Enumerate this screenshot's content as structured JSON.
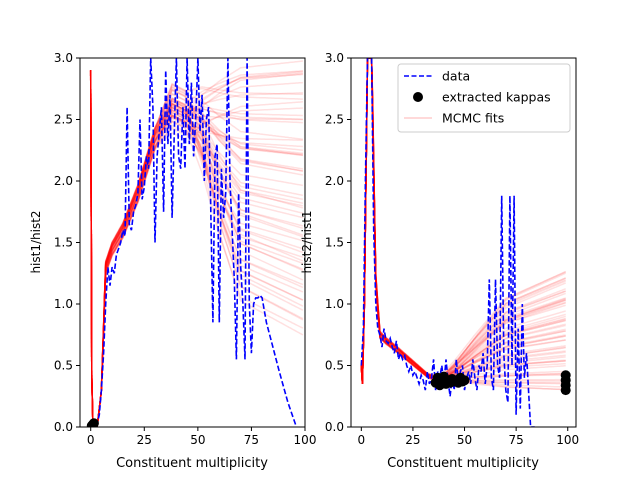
{
  "chart_data": [
    {
      "type": "line",
      "title": "",
      "xlabel": "Constituent multiplicity",
      "ylabel": "hist1/hist2",
      "xlim": [
        -5,
        100
      ],
      "ylim": [
        0,
        3.0
      ],
      "xticks": [
        0,
        25,
        50,
        75,
        100
      ],
      "yticks": [
        0.0,
        0.5,
        1.0,
        1.5,
        2.0,
        2.5,
        3.0
      ],
      "grid": false,
      "legend": "none",
      "series": [
        {
          "name": "data",
          "style": "dashed",
          "color": "#0000ff",
          "points": [
            [
              0,
              0
            ],
            [
              1,
              0.02
            ],
            [
              2,
              0
            ],
            [
              3,
              0.02
            ],
            [
              4,
              0.1
            ],
            [
              5,
              0.3
            ],
            [
              6,
              0.6
            ],
            [
              7,
              1.0
            ],
            [
              8,
              1.3
            ],
            [
              9,
              1.15
            ],
            [
              10,
              1.3
            ],
            [
              11,
              1.25
            ],
            [
              12,
              1.4
            ],
            [
              13,
              1.45
            ],
            [
              14,
              1.5
            ],
            [
              15,
              1.6
            ],
            [
              16,
              1.55
            ],
            [
              17,
              2.6
            ],
            [
              18,
              1.65
            ],
            [
              19,
              1.6
            ],
            [
              20,
              1.75
            ],
            [
              21,
              1.8
            ],
            [
              22,
              1.9
            ],
            [
              23,
              2.5
            ],
            [
              24,
              1.85
            ],
            [
              25,
              1.95
            ],
            [
              26,
              2.2
            ],
            [
              27,
              2.1
            ],
            [
              28,
              3.0
            ],
            [
              29,
              2.6
            ],
            [
              30,
              1.5
            ],
            [
              31,
              2.2
            ],
            [
              32,
              2.4
            ],
            [
              33,
              2.6
            ],
            [
              34,
              1.75
            ],
            [
              35,
              2.9
            ],
            [
              36,
              2.3
            ],
            [
              37,
              2.7
            ],
            [
              38,
              1.7
            ],
            [
              39,
              2.4
            ],
            [
              40,
              3.0
            ],
            [
              41,
              2.2
            ],
            [
              42,
              2.1
            ],
            [
              43,
              2.6
            ],
            [
              44,
              2.1
            ],
            [
              45,
              3.0
            ],
            [
              46,
              2.3
            ],
            [
              47,
              2.8
            ],
            [
              48,
              2.2
            ],
            [
              49,
              2.5
            ],
            [
              50,
              3.0
            ],
            [
              51,
              2.4
            ],
            [
              52,
              2.7
            ],
            [
              53,
              2.0
            ],
            [
              54,
              2.5
            ],
            [
              55,
              2.6
            ],
            [
              56,
              1.8
            ],
            [
              57,
              0.85
            ],
            [
              58,
              2.2
            ],
            [
              59,
              2.3
            ],
            [
              60,
              0.85
            ],
            [
              61,
              2.1
            ],
            [
              62,
              1.7
            ],
            [
              63,
              1.9
            ],
            [
              64,
              3.0
            ],
            [
              65,
              2.0
            ],
            [
              66,
              1.6
            ],
            [
              67,
              1.2
            ],
            [
              68,
              0.55
            ],
            [
              69,
              1.9
            ],
            [
              70,
              1.3
            ],
            [
              71,
              1.0
            ],
            [
              72,
              0.55
            ],
            [
              73,
              3.0
            ],
            [
              74,
              1.0
            ],
            [
              75,
              0.6
            ],
            [
              76,
              1.0
            ],
            [
              77,
              1.05
            ],
            [
              78,
              1.05
            ],
            [
              79,
              1.07
            ],
            [
              80,
              1.05
            ],
            [
              82,
              0.85
            ],
            [
              85,
              0.65
            ],
            [
              88,
              0.45
            ],
            [
              92,
              0.2
            ],
            [
              95,
              0.05
            ],
            [
              96,
              0
            ]
          ]
        },
        {
          "name": "extracted kappas",
          "style": "markers",
          "color": "#000000",
          "points": [
            [
              0.5,
              0.01
            ],
            [
              1.0,
              0.02
            ],
            [
              1.5,
              0.03
            ]
          ]
        },
        {
          "name": "MCMC fits",
          "style": "band",
          "color": "#ff0000",
          "n_curves": 60,
          "x_end": 99,
          "end_range": [
            0.78,
            3.0
          ]
        }
      ]
    },
    {
      "type": "line",
      "title": "",
      "xlabel": "Constituent multiplicity",
      "ylabel": "hist2/hist1",
      "xlim": [
        -5,
        104
      ],
      "ylim": [
        0,
        3.0
      ],
      "xticks": [
        0,
        25,
        50,
        75,
        100
      ],
      "yticks": [
        0.0,
        0.5,
        1.0,
        1.5,
        2.0,
        2.5,
        3.0
      ],
      "grid": false,
      "legend": "top-right",
      "legend_entries": [
        "data",
        "extracted kappas",
        "MCMC fits"
      ],
      "series": [
        {
          "name": "data",
          "style": "dashed",
          "color": "#0000ff",
          "points": [
            [
              0,
              0.5
            ],
            [
              1,
              0.8
            ],
            [
              2,
              2.0
            ],
            [
              3,
              3.0
            ],
            [
              4,
              3.0
            ],
            [
              5,
              3.0
            ],
            [
              6,
              1.6
            ],
            [
              7,
              1.0
            ],
            [
              8,
              0.8
            ],
            [
              9,
              0.75
            ],
            [
              10,
              0.65
            ],
            [
              11,
              0.8
            ],
            [
              12,
              0.7
            ],
            [
              13,
              0.68
            ],
            [
              14,
              0.72
            ],
            [
              15,
              0.65
            ],
            [
              16,
              0.6
            ],
            [
              17,
              0.7
            ],
            [
              18,
              0.55
            ],
            [
              19,
              0.6
            ],
            [
              20,
              0.55
            ],
            [
              21,
              0.58
            ],
            [
              22,
              0.5
            ],
            [
              23,
              0.45
            ],
            [
              24,
              0.5
            ],
            [
              25,
              0.42
            ],
            [
              26,
              0.45
            ],
            [
              27,
              0.4
            ],
            [
              28,
              0.35
            ],
            [
              29,
              0.42
            ],
            [
              30,
              0.38
            ],
            [
              31,
              0.3
            ],
            [
              32,
              0.45
            ],
            [
              33,
              0.35
            ],
            [
              34,
              0.4
            ],
            [
              35,
              0.55
            ],
            [
              36,
              0.3
            ],
            [
              37,
              0.45
            ],
            [
              38,
              0.4
            ],
            [
              39,
              0.5
            ],
            [
              40,
              0.35
            ],
            [
              41,
              0.55
            ],
            [
              42,
              0.38
            ],
            [
              43,
              0.25
            ],
            [
              44,
              0.4
            ],
            [
              45,
              0.3
            ],
            [
              46,
              0.55
            ],
            [
              47,
              0.35
            ],
            [
              48,
              0.45
            ],
            [
              49,
              0.5
            ],
            [
              50,
              0.3
            ],
            [
              51,
              0.4
            ],
            [
              52,
              0.45
            ],
            [
              53,
              0.35
            ],
            [
              54,
              0.55
            ],
            [
              55,
              0.4
            ],
            [
              56,
              0.3
            ],
            [
              57,
              0.5
            ],
            [
              58,
              0.45
            ],
            [
              59,
              0.6
            ],
            [
              60,
              0.35
            ],
            [
              61,
              0.5
            ],
            [
              62,
              1.2
            ],
            [
              63,
              0.4
            ],
            [
              64,
              0.3
            ],
            [
              65,
              1.2
            ],
            [
              66,
              0.5
            ],
            [
              67,
              0.4
            ],
            [
              68,
              1.88
            ],
            [
              69,
              0.6
            ],
            [
              70,
              0.3
            ],
            [
              71,
              0.2
            ],
            [
              72,
              1.88
            ],
            [
              73,
              0.5
            ],
            [
              74,
              1.88
            ],
            [
              75,
              0.1
            ],
            [
              76,
              0.8
            ],
            [
              77,
              0.15
            ],
            [
              78,
              1.0
            ],
            [
              79,
              0.4
            ],
            [
              80,
              0.6
            ],
            [
              81,
              0.3
            ],
            [
              82,
              0
            ],
            [
              84,
              0
            ]
          ]
        },
        {
          "name": "extracted kappas",
          "style": "markers",
          "color": "#000000",
          "points": [
            [
              36,
              0.36
            ],
            [
              37,
              0.4
            ],
            [
              38,
              0.34
            ],
            [
              39,
              0.37
            ],
            [
              40,
              0.41
            ],
            [
              41,
              0.35
            ],
            [
              42,
              0.38
            ],
            [
              43,
              0.36
            ],
            [
              44,
              0.39
            ],
            [
              45,
              0.37
            ],
            [
              46,
              0.38
            ],
            [
              47,
              0.36
            ],
            [
              48,
              0.4
            ],
            [
              49,
              0.37
            ],
            [
              50,
              0.38
            ],
            [
              99,
              0.3
            ],
            [
              99,
              0.34
            ],
            [
              99,
              0.38
            ],
            [
              99,
              0.42
            ]
          ]
        },
        {
          "name": "MCMC fits",
          "style": "band",
          "color": "#ff0000",
          "n_curves": 60,
          "x_end": 99,
          "end_range": [
            0.3,
            1.28
          ]
        }
      ]
    }
  ]
}
